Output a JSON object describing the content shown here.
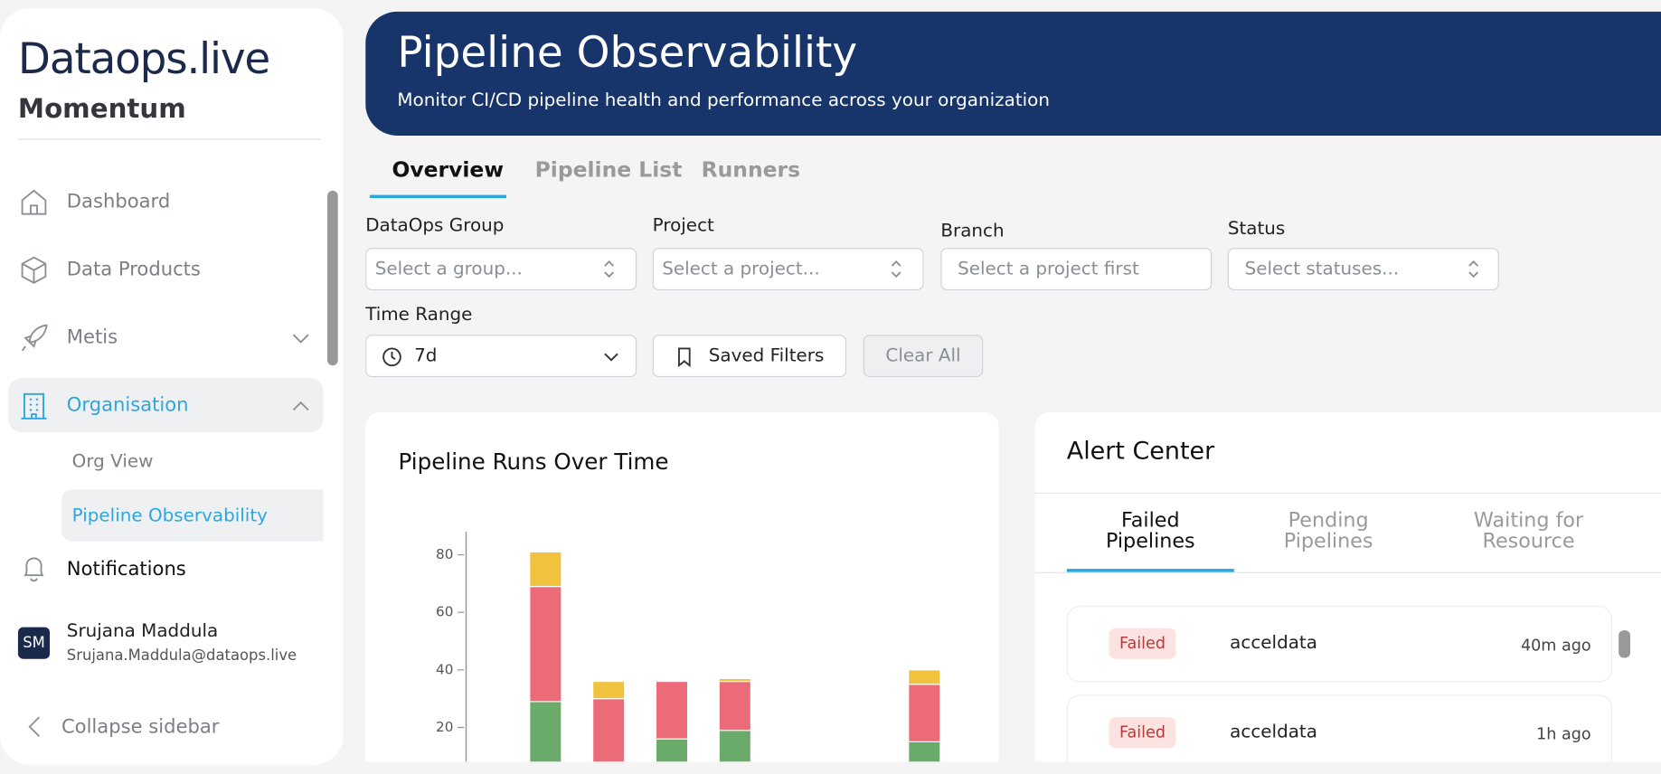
{
  "sidebar": {
    "logo": "Dataops.live",
    "product": "Momentum",
    "nav": [
      "Dashboard",
      "Data Products",
      "Metis",
      "Organisation"
    ],
    "subnav": [
      "Org View",
      "Pipeline Observability"
    ],
    "notifications": "Notifications",
    "user": {
      "initials": "SM",
      "name": "Srujana Maddula",
      "email": "Srujana.Maddula@dataops.live"
    },
    "collapse": "Collapse sidebar"
  },
  "header": {
    "title": "Pipeline Observability",
    "subtitle": "Monitor CI/CD pipeline health and performance across your organization"
  },
  "tabs": [
    "Overview",
    "Pipeline List",
    "Runners"
  ],
  "filters": {
    "fields": [
      {
        "label": "DataOps Group",
        "placeholder": "Select a group..."
      },
      {
        "label": "Project",
        "placeholder": "Select a project..."
      },
      {
        "label": "Branch",
        "placeholder": "Select a project first"
      },
      {
        "label": "Status",
        "placeholder": "Select statuses..."
      }
    ],
    "time_range": {
      "label": "Time Range",
      "value": "7d"
    },
    "saved": "Saved Filters",
    "clear": "Clear All"
  },
  "chart_data": {
    "type": "bar",
    "stacked": true,
    "title": "Pipeline Runs Over Time",
    "categories": [
      null,
      null,
      null,
      null,
      null,
      null,
      null
    ],
    "series": [
      {
        "color": "#6aab6a",
        "values": [
          29,
          0,
          16,
          19,
          0,
          0,
          15
        ]
      },
      {
        "color": "#ec6b79",
        "values": [
          40,
          30,
          20,
          17,
          0,
          0,
          20
        ]
      },
      {
        "color": "#f0c23e",
        "values": [
          12,
          6,
          0,
          1,
          0,
          0,
          5
        ]
      }
    ],
    "ylim": [
      0,
      88
    ],
    "yticks": [
      20,
      40,
      60,
      80
    ]
  },
  "alerts": {
    "title": "Alert Center",
    "tabs": [
      "Failed\nPipelines",
      "Pending\nPipelines",
      "Waiting for\nResource"
    ],
    "items": [
      {
        "status": "Failed",
        "name": "acceldata",
        "time": "40m ago"
      },
      {
        "status": "Failed",
        "name": "acceldata",
        "time": "1h ago"
      }
    ]
  }
}
